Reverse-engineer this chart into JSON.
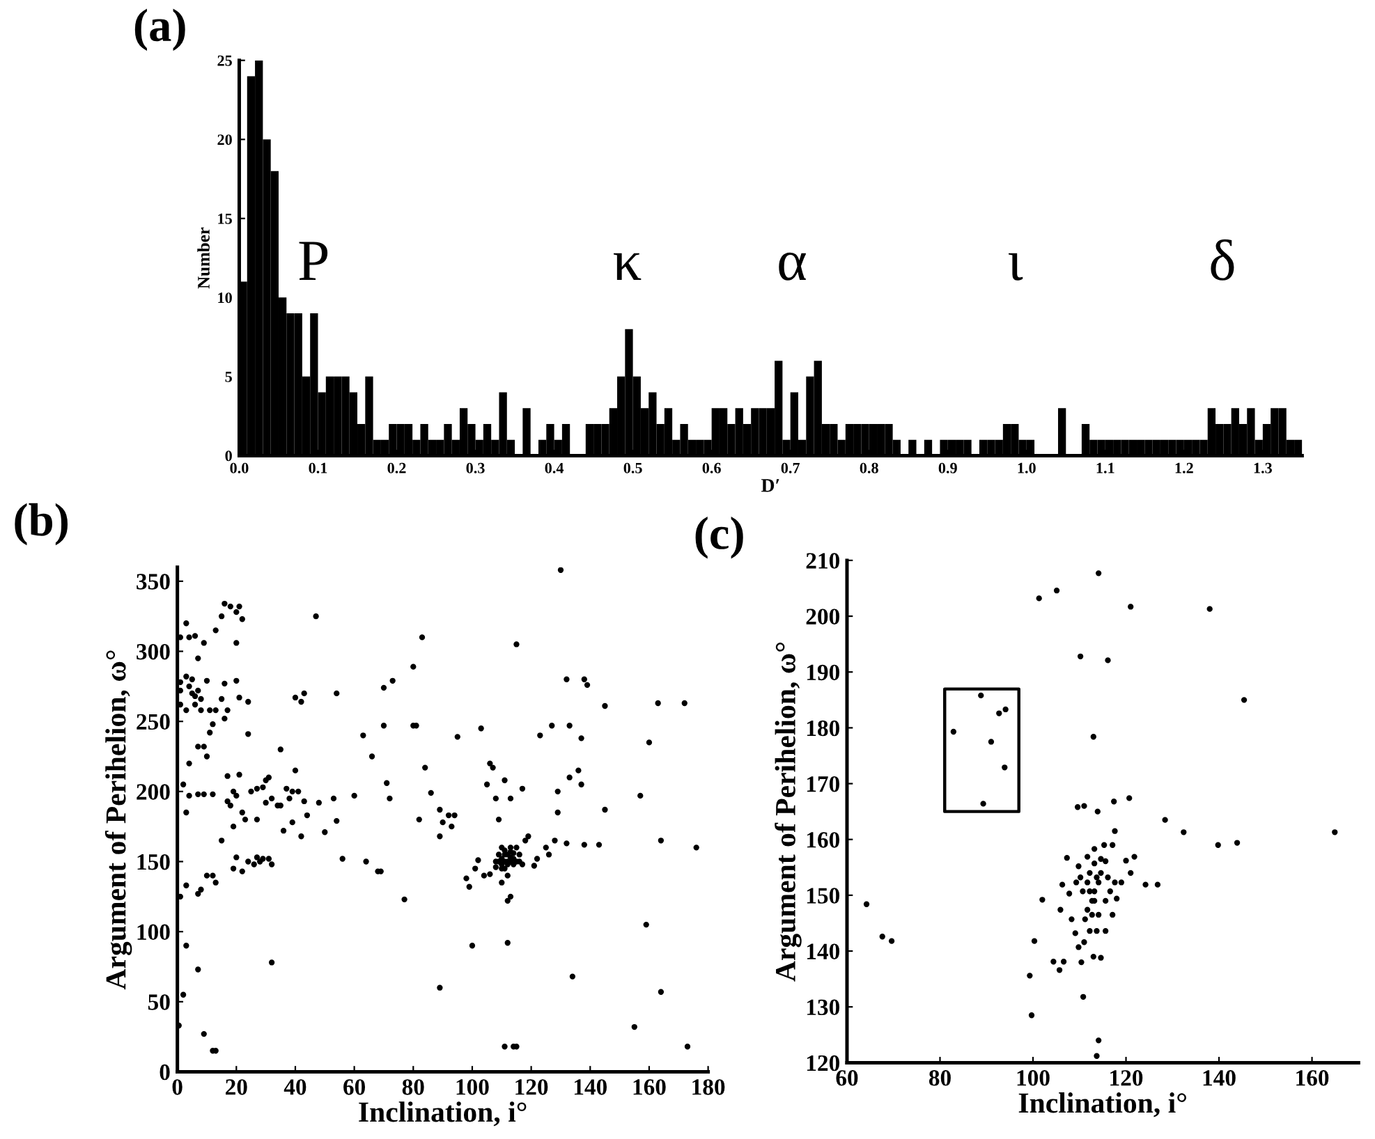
{
  "chart_data": [
    {
      "type": "histogram",
      "title": "(a)",
      "xlabel": "D′",
      "ylabel": "Number",
      "color": "#000000",
      "bins": [
        0,
        0.01,
        0.02,
        0.03,
        0.04,
        0.05,
        0.06,
        0.07,
        0.08,
        0.09,
        0.1,
        0.11,
        0.12,
        0.13,
        0.14,
        0.15,
        0.16,
        0.17,
        0.18,
        0.19,
        0.2,
        0.21,
        0.22,
        0.23,
        0.24,
        0.25,
        0.26,
        0.27,
        0.28,
        0.29,
        0.3,
        0.31,
        0.32,
        0.33,
        0.34,
        0.35,
        0.36,
        0.37,
        0.38,
        0.39,
        0.4,
        0.41,
        0.42,
        0.43,
        0.44,
        0.45,
        0.46,
        0.47,
        0.48,
        0.49,
        0.5,
        0.51,
        0.52,
        0.53,
        0.54,
        0.55,
        0.56,
        0.57,
        0.58,
        0.59,
        0.6,
        0.61,
        0.62,
        0.63,
        0.64,
        0.65,
        0.66,
        0.67,
        0.68,
        0.69,
        0.7,
        0.71,
        0.72,
        0.73,
        0.74,
        0.75,
        0.76,
        0.77,
        0.78,
        0.79,
        0.8,
        0.81,
        0.82,
        0.83,
        0.84,
        0.85,
        0.86,
        0.87,
        0.88,
        0.89,
        0.9,
        0.91,
        0.92,
        0.93,
        0.94,
        0.95,
        0.96,
        0.97,
        0.98,
        0.99,
        1.0,
        1.01,
        1.02,
        1.03,
        1.04,
        1.05,
        1.06,
        1.07,
        1.08,
        1.09,
        1.1,
        1.11,
        1.12,
        1.13,
        1.14,
        1.15,
        1.16,
        1.17,
        1.18,
        1.19,
        1.2,
        1.21,
        1.22,
        1.23,
        1.24,
        1.25,
        1.26,
        1.27,
        1.28,
        1.29,
        1.3,
        1.31,
        1.32,
        1.33,
        1.34,
        1.35
      ],
      "values": [
        11,
        24,
        25,
        20,
        18,
        10,
        9,
        9,
        5,
        9,
        4,
        5,
        5,
        5,
        4,
        2,
        5,
        1,
        1,
        2,
        2,
        2,
        1,
        2,
        1,
        1,
        2,
        1,
        3,
        2,
        1,
        2,
        1,
        4,
        1,
        0,
        3,
        0,
        1,
        2,
        1,
        2,
        0,
        0,
        2,
        2,
        2,
        3,
        5,
        8,
        5,
        3,
        4,
        2,
        3,
        1,
        2,
        1,
        1,
        1,
        3,
        3,
        2,
        3,
        2,
        3,
        3,
        3,
        6,
        1,
        4,
        1,
        5,
        6,
        2,
        2,
        1,
        2,
        2,
        2,
        2,
        2,
        2,
        1,
        0,
        1,
        0,
        1,
        0,
        1,
        1,
        1,
        1,
        0,
        1,
        1,
        1,
        2,
        2,
        1,
        1,
        0,
        0,
        0,
        3,
        0,
        0,
        2,
        1,
        1,
        1,
        1,
        1,
        1,
        1,
        1,
        1,
        1,
        1,
        1,
        1,
        1,
        1,
        3,
        2,
        2,
        3,
        2,
        3,
        1,
        2,
        3,
        3,
        1,
        1
      ],
      "xlim": [
        0,
        1.35
      ],
      "xticks": [
        {
          "value": 0,
          "label": "0.0"
        },
        {
          "value": 0.1,
          "label": "0.1"
        },
        {
          "value": 0.2,
          "label": "0.2"
        },
        {
          "value": 0.3,
          "label": "0.3"
        },
        {
          "value": 0.4,
          "label": "0.4"
        },
        {
          "value": 0.5,
          "label": "0.5"
        },
        {
          "value": 0.6,
          "label": "0.6"
        },
        {
          "value": 0.7,
          "label": "0.7"
        },
        {
          "value": 0.8,
          "label": "0.8"
        },
        {
          "value": 0.9,
          "label": "0.9"
        },
        {
          "value": 1.0,
          "label": "1.0"
        },
        {
          "value": 1.1,
          "label": "1.1"
        },
        {
          "value": 1.2,
          "label": "1.2"
        },
        {
          "value": 1.3,
          "label": "1.3"
        }
      ],
      "ylim": [
        0,
        25
      ],
      "yticks": [
        0,
        5,
        10,
        15,
        20,
        25
      ],
      "annotations": [
        "P",
        "κ",
        "α",
        "ι",
        "δ"
      ]
    },
    {
      "type": "scatter",
      "title": "(b)",
      "xlabel": "Inclination, i°",
      "ylabel": "Argument of Perihelion, ω°",
      "xlim": [
        0,
        180
      ],
      "xticks": [
        0,
        20,
        40,
        60,
        80,
        100,
        120,
        140,
        160,
        180
      ],
      "ylim": [
        0,
        360
      ],
      "yticks": [
        0,
        50,
        100,
        150,
        200,
        250,
        300,
        350
      ],
      "series": [
        {
          "type": "scatter",
          "color": "#000000",
          "x": [
            1,
            3,
            4,
            6,
            7,
            5,
            3,
            4,
            5,
            6,
            7,
            8,
            6,
            8,
            3,
            1,
            1,
            1,
            2,
            4,
            3,
            7,
            9,
            10,
            11,
            13,
            11,
            12,
            10,
            9,
            13,
            15,
            16,
            18,
            20,
            21,
            22,
            20,
            15,
            16,
            17,
            16,
            20,
            21,
            24,
            24,
            10,
            8,
            7,
            12,
            13,
            3,
            1,
            3,
            7,
            2,
            9,
            12,
            13,
            0.5,
            4,
            7,
            9,
            12,
            15,
            17,
            17,
            18,
            19,
            20,
            21,
            22,
            23,
            19,
            19,
            20,
            22,
            24,
            26,
            27,
            28,
            29,
            31,
            32,
            25,
            27,
            29,
            30,
            31,
            27,
            30,
            32,
            34,
            35,
            36,
            35,
            37,
            39,
            40,
            38,
            39,
            41,
            42,
            43,
            44,
            40,
            42,
            43,
            47,
            48,
            50,
            53,
            54,
            54,
            56,
            60,
            32,
            63,
            66,
            64,
            68,
            69,
            70,
            70,
            71,
            72,
            73,
            77,
            80,
            80,
            81,
            82,
            83,
            84,
            86,
            89,
            89,
            90,
            92,
            93,
            94,
            95,
            89,
            103,
            105,
            106,
            107,
            108,
            109,
            111,
            113,
            115,
            117,
            98,
            99,
            101,
            102,
            104,
            106,
            108,
            109,
            110,
            111,
            110,
            112,
            113,
            114,
            112,
            115,
            116,
            117,
            118,
            119,
            113,
            112,
            110,
            112,
            100,
            111,
            114,
            115,
            109,
            110,
            111,
            111,
            112,
            112,
            113,
            113,
            114,
            114,
            110,
            108,
            115,
            116,
            111,
            113,
            121,
            122,
            123,
            125,
            126,
            127,
            128,
            129,
            129,
            130,
            132,
            132,
            133,
            133,
            134,
            136,
            137,
            137,
            138,
            138,
            139,
            143,
            145,
            145,
            157,
            160,
            159,
            163,
            164,
            164,
            155,
            172,
            176,
            173
          ],
          "values": [
            310,
            320,
            310,
            311,
            295,
            280,
            282,
            275,
            270,
            268,
            272,
            266,
            262,
            258,
            258,
            272,
            278,
            262,
            205,
            220,
            185,
            232,
            232,
            225,
            258,
            258,
            242,
            248,
            279,
            306,
            315,
            325,
            334,
            332,
            328,
            332,
            323,
            306,
            266,
            277,
            258,
            252,
            279,
            267,
            264,
            241,
            140,
            130,
            127,
            140,
            135,
            133,
            125,
            90,
            73,
            55,
            27,
            15,
            15,
            33,
            197,
            198,
            198,
            198,
            165,
            211,
            193,
            190,
            200,
            197,
            212,
            185,
            180,
            175,
            145,
            153,
            143,
            150,
            148,
            153,
            150,
            152,
            152,
            148,
            200,
            202,
            203,
            208,
            210,
            180,
            192,
            195,
            190,
            190,
            172,
            230,
            202,
            200,
            215,
            195,
            178,
            200,
            168,
            193,
            183,
            267,
            264,
            270,
            325,
            192,
            171,
            195,
            179,
            270,
            152,
            197,
            78,
            240,
            225,
            150,
            143,
            143,
            274,
            247,
            206,
            195,
            279,
            123,
            289,
            247,
            247,
            180,
            310,
            217,
            199,
            187,
            168,
            178,
            183,
            175,
            183,
            239,
            60,
            245,
            205,
            220,
            217,
            195,
            180,
            208,
            195,
            305,
            202,
            138,
            132,
            145,
            151,
            140,
            141,
            150,
            155,
            148,
            145,
            160,
            150,
            157,
            152,
            140,
            160,
            155,
            148,
            165,
            168,
            125,
            122,
            135,
            92,
            90,
            18,
            18,
            18,
            150,
            152,
            150,
            155,
            148,
            155,
            150,
            153,
            148,
            156,
            145,
            146,
            150,
            150,
            158,
            160,
            147,
            152,
            240,
            160,
            155,
            247,
            165,
            200,
            185,
            358,
            280,
            163,
            247,
            210,
            68,
            215,
            238,
            205,
            162,
            280,
            276,
            162,
            187,
            261,
            197,
            235,
            105,
            263,
            57,
            165,
            32,
            263,
            160,
            18
          ]
        }
      ]
    },
    {
      "type": "scatter",
      "title": "(c)",
      "xlabel": "Inclination, i°",
      "ylabel": "Argument of Perihelion, ω°",
      "xlim": [
        60,
        170
      ],
      "xticks": [
        60,
        80,
        100,
        120,
        140,
        160
      ],
      "ylim": [
        120,
        210
      ],
      "yticks": [
        120,
        130,
        140,
        150,
        160,
        170,
        180,
        190,
        200,
        210
      ],
      "series": [
        {
          "type": "scatter",
          "color": "#000000",
          "x": [
            114.1,
            101.3,
            105.1,
            121,
            138,
            110.2,
            116.1,
            145.4,
            113,
            88.8,
            92.7,
            94.1,
            82.9,
            91,
            93.9,
            89.3,
            109.6,
            111,
            113.9,
            117.4,
            120.7,
            128.4,
            132.4,
            139.8,
            143.9,
            164.9,
            64.2,
            67.6,
            69.6,
            102,
            100.3,
            99.3,
            99.7,
            104.4,
            105.7,
            106.6,
            110.4,
            110.8,
            113,
            114.6,
            114.1,
            113.7,
            124.2,
            126.8,
            121.8,
            117.6,
            117.1,
            115.3,
            113.2,
            111.7,
            107.3,
            109.8,
            120,
            121,
            119,
            106.3,
            107.8,
            105.9,
            108.3,
            109.1,
            109.8,
            111,
            112.2,
            113.7,
            115.6,
            117.1,
            118,
            116.6,
            116.1,
            114.6,
            114.1,
            113.2,
            112.7,
            111.7,
            110.7,
            110.2,
            112.2,
            113.2,
            114.6,
            111.2,
            114.1,
            109.3,
            117.6,
            112.2,
            113.2,
            111.7,
            113.7,
            112.7,
            115.6,
            115.6
          ],
          "values": [
            207.7,
            203.2,
            204.6,
            201.7,
            201.3,
            192.8,
            192.1,
            185,
            178.4,
            185.8,
            182.6,
            183.3,
            179.3,
            177.5,
            172.9,
            166.4,
            165.8,
            166,
            165,
            166.8,
            167.4,
            163.5,
            161.3,
            159,
            159.4,
            161.3,
            148.4,
            142.6,
            141.8,
            149.2,
            141.8,
            135.6,
            128.5,
            138.1,
            136.6,
            138.1,
            138,
            131.8,
            139,
            138.8,
            124,
            121.2,
            151.9,
            151.9,
            156.9,
            161.5,
            159,
            159,
            158.3,
            156.9,
            156.7,
            155.2,
            156.2,
            154,
            152.3,
            151.9,
            150.3,
            147.4,
            145.7,
            143.2,
            140.7,
            141.6,
            143.6,
            143.6,
            143.6,
            146.5,
            149.4,
            150.7,
            153.2,
            154,
            152.3,
            150.7,
            149,
            147.4,
            150.7,
            153.2,
            154,
            155.7,
            156.5,
            145.7,
            146.5,
            152.3,
            152.3,
            150.7,
            149,
            152.3,
            153.2,
            146.5,
            149,
            156.1
          ]
        }
      ]
    }
  ]
}
